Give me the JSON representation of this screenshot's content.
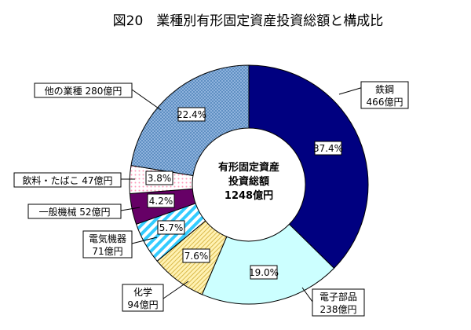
{
  "chart_data": {
    "type": "pie",
    "variant": "donut",
    "title": "図20　業種別有形固定資産投資総額と構成比",
    "center_label": [
      "有形固定資産",
      "投資総額",
      "1248億円"
    ],
    "slices": [
      {
        "name": "鉄鋼",
        "value": 466,
        "value_label": "466億円",
        "percent": 37.4,
        "percent_label": "37.4%",
        "color": "#000080",
        "pattern": "solid"
      },
      {
        "name": "電子部品",
        "value": 238,
        "value_label": "238億円",
        "percent": 19.0,
        "percent_label": "19.0%",
        "color": "#ccffff",
        "pattern": "solid"
      },
      {
        "name": "化学",
        "value": 94,
        "value_label": "94億円",
        "percent": 7.6,
        "percent_label": "7.6%",
        "color": "#ffe699",
        "pattern": "diagonal-lines"
      },
      {
        "name": "電気機器",
        "value": 71,
        "value_label": "71億円",
        "percent": 5.7,
        "percent_label": "5.7%",
        "color": "#33ccff",
        "pattern": "diagonal-stripes"
      },
      {
        "name": "一般機械",
        "value": 52,
        "value_label": "52億円",
        "percent": 4.2,
        "percent_label": "4.2%",
        "color": "#660066",
        "pattern": "solid"
      },
      {
        "name": "飲料・たばこ",
        "value": 47,
        "value_label": "47億円",
        "percent": 3.8,
        "percent_label": "3.8%",
        "color": "#ffccdd",
        "pattern": "dots"
      },
      {
        "name": "他の業種",
        "value": 280,
        "value_label": "280億円",
        "percent": 22.4,
        "percent_label": "22.4%",
        "color": "#6699cc",
        "pattern": "checker"
      }
    ],
    "callouts": [
      {
        "lines": [
          "鉄鋼",
          "466億円"
        ]
      },
      {
        "lines": [
          "電子部品",
          "238億円"
        ]
      },
      {
        "lines": [
          "化学",
          "94億円"
        ]
      },
      {
        "lines": [
          "電気機器",
          "71億円"
        ]
      },
      {
        "lines": [
          "一般機械 52億円"
        ]
      },
      {
        "lines": [
          "飲料・たばこ 47億円"
        ]
      },
      {
        "lines": [
          "他の業種 280億円"
        ]
      }
    ]
  }
}
